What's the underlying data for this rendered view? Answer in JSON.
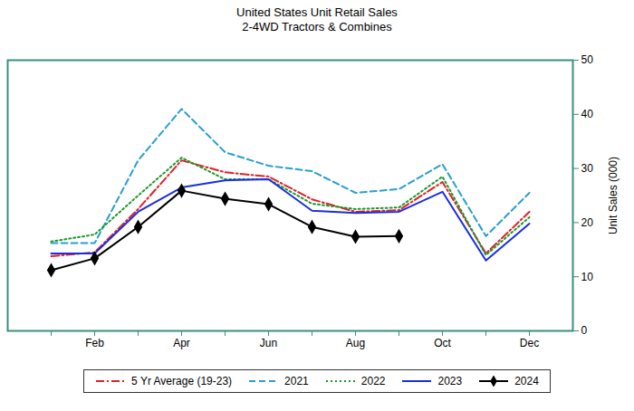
{
  "chart_data": {
    "type": "line",
    "title": "United States Unit Retail Sales",
    "subtitle": "2-4WD Tractors & Combines",
    "y_label": "Unit Sales (000)",
    "categories": [
      null,
      "Feb",
      null,
      "Apr",
      null,
      "Jun",
      null,
      "Aug",
      null,
      "Oct",
      null,
      "Dec"
    ],
    "ylim": [
      0,
      50
    ],
    "yticks": [
      0,
      10,
      20,
      30,
      40,
      50
    ],
    "grid": false,
    "legend": "bottom",
    "series": [
      {
        "name": "5 Yr Average (19-23)",
        "color": "#e0202a",
        "line_style": "dashdot",
        "values": [
          13.8,
          14.5,
          22.5,
          31.5,
          29.3,
          28.5,
          24.3,
          22.0,
          22.3,
          27.5,
          14.3,
          22.0
        ]
      },
      {
        "name": "2021",
        "color": "#2a9fd0",
        "line_style": "dashed",
        "values": [
          16.2,
          16.2,
          31.5,
          41.0,
          33.0,
          30.5,
          29.5,
          25.5,
          26.2,
          30.8,
          17.5,
          25.5
        ]
      },
      {
        "name": "2022",
        "color": "#1a9a2a",
        "line_style": "dotted",
        "values": [
          16.5,
          17.8,
          25.0,
          32.0,
          28.0,
          28.0,
          23.5,
          22.5,
          22.8,
          28.5,
          14.0,
          21.0
        ]
      },
      {
        "name": "2023",
        "color": "#1a2ee0",
        "line_style": "solid",
        "values": [
          14.3,
          14.3,
          22.0,
          26.5,
          27.8,
          28.0,
          22.2,
          21.8,
          22.0,
          25.7,
          13.0,
          19.8
        ]
      },
      {
        "name": "2024",
        "color": "#000000",
        "line_style": "solid",
        "marker": "diamond",
        "values": [
          11.2,
          13.4,
          19.2,
          25.9,
          24.4,
          23.4,
          19.2,
          17.4,
          17.5,
          null,
          null,
          null
        ]
      }
    ]
  }
}
